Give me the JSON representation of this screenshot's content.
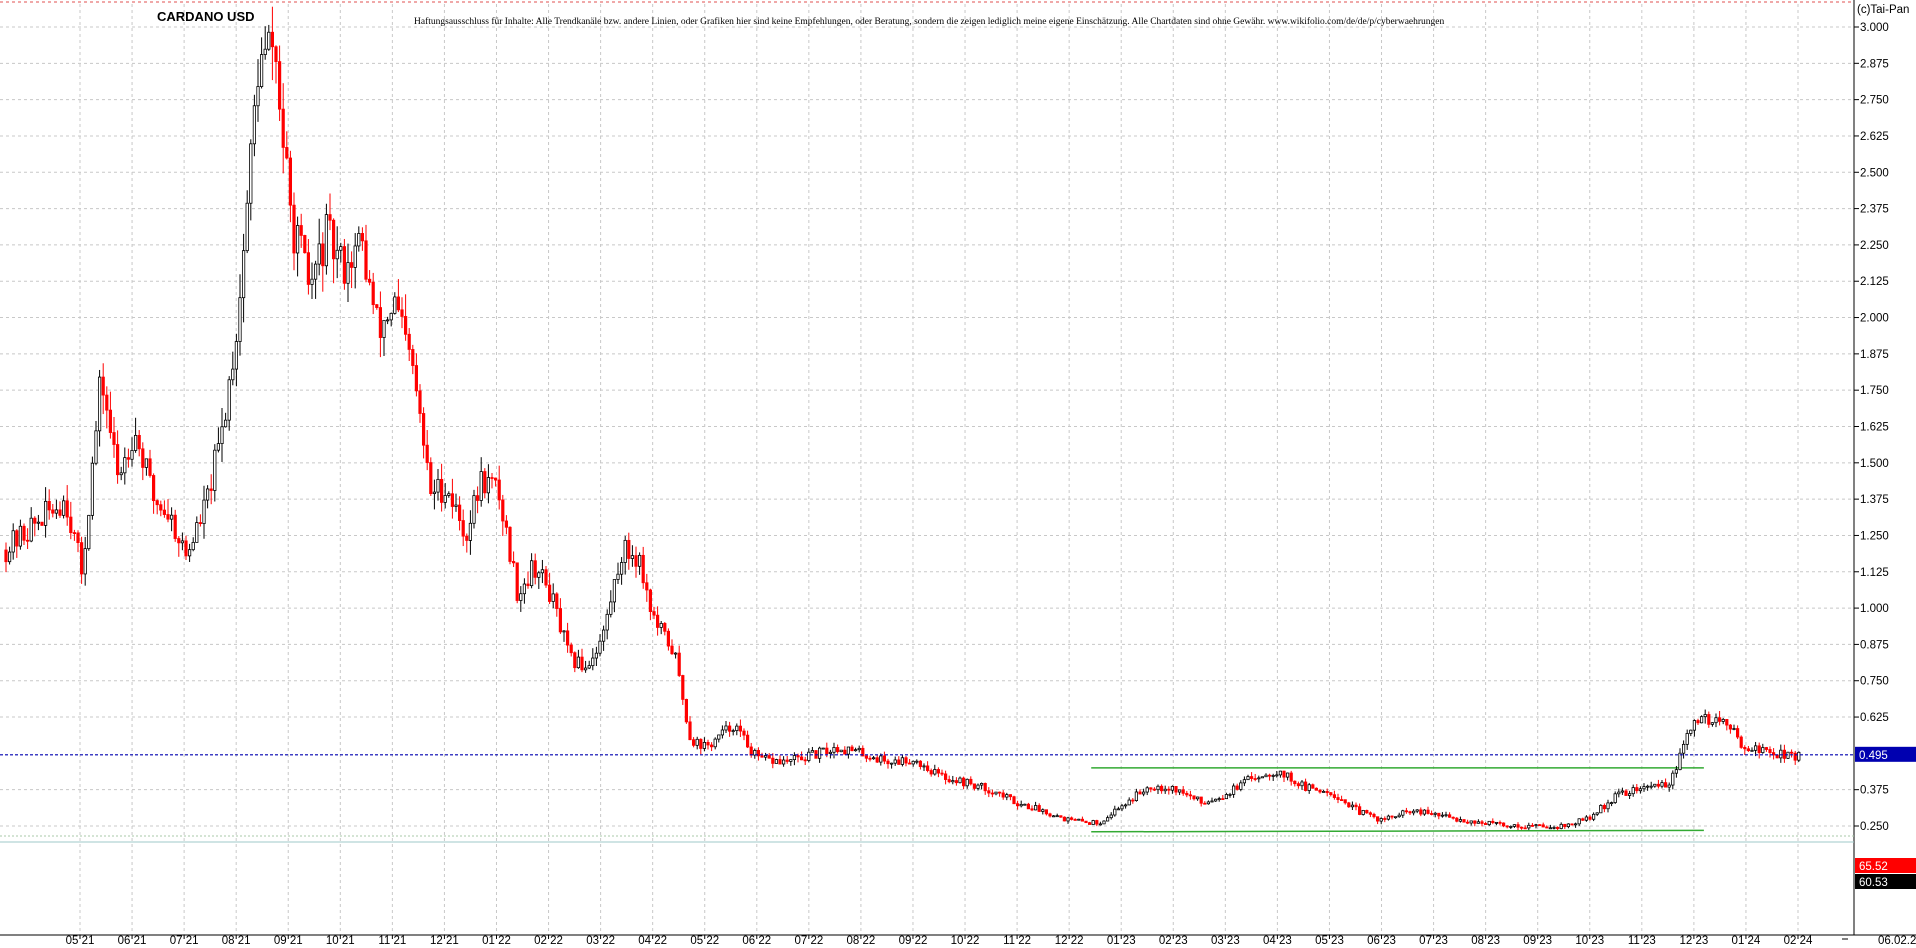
{
  "chart_data": {
    "type": "candlestick",
    "title": "CARDANO USD",
    "disclaimer": "Haftungsausschluss für Inhalte: Alle Trendkanäle bzw. andere Linien, oder Grafiken hier sind keine Empfehlungen, oder Beratung, sondern die zeigen lediglich meine eigene Einschätzung. Alle Chartdaten sind ohne Gewähr.  www.wikifolio.com/de/de/p/cyberwaehrungen",
    "copyright": "(c)Tai-Pan",
    "ylim": [
      0.17,
      3.06
    ],
    "grid": true,
    "y_ticks": [
      "3.000",
      "2.875",
      "2.750",
      "2.625",
      "2.500",
      "2.375",
      "2.250",
      "2.125",
      "2.000",
      "1.875",
      "1.750",
      "1.625",
      "1.500",
      "1.375",
      "1.250",
      "1.125",
      "1.000",
      "0.875",
      "0.750",
      "0.625",
      "0.375",
      "0.250"
    ],
    "x_ticks": [
      "05 21",
      "06 21",
      "07 21",
      "08 21",
      "09 21",
      "10 21",
      "11 21",
      "12 21",
      "01 22",
      "02 22",
      "03 22",
      "04 22",
      "05 22",
      "06 22",
      "07 22",
      "08 22",
      "09 22",
      "10 22",
      "11 22",
      "12 22",
      "01 23",
      "02 23",
      "03 23",
      "04 23",
      "05 23",
      "06 23",
      "07 23",
      "08 23",
      "09 23",
      "10 23",
      "11 23",
      "12 23",
      "01 24",
      "02 24"
    ],
    "last_date_label": "06.02.24",
    "current_price": {
      "label": "0.495",
      "value": 0.495,
      "color": "#0000b0"
    },
    "indicator_badges": [
      {
        "label": "65.52",
        "background": "#ff0000",
        "color": "#ffffff"
      },
      {
        "label": "60.53",
        "background": "#000000",
        "color": "#ffffff"
      }
    ],
    "up_color": "#000000",
    "down_color": "#ff0000",
    "trend_lines": [
      {
        "color": "#33aa33",
        "points": [
          [
            "01 23",
            0.45
          ],
          [
            "12 23",
            0.45
          ]
        ]
      },
      {
        "color": "#33aa33",
        "points": [
          [
            "01 23",
            0.23
          ],
          [
            "12 23",
            0.235
          ]
        ]
      }
    ],
    "price_path": [
      [
        "05 21",
        1.2
      ],
      [
        "05 21",
        1.38
      ],
      [
        "05 21",
        1.12
      ],
      [
        "06 21",
        1.8
      ],
      [
        "06 21",
        1.45
      ],
      [
        "06 21",
        1.62
      ],
      [
        "07 21",
        1.38
      ],
      [
        "07 21",
        1.32
      ],
      [
        "07 21",
        1.18
      ],
      [
        "08 21",
        1.35
      ],
      [
        "08 21",
        1.6
      ],
      [
        "08 21",
        2.0
      ],
      [
        "09 21",
        2.85
      ],
      [
        "09 21",
        2.95
      ],
      [
        "09 21",
        2.35
      ],
      [
        "10 21",
        2.1
      ],
      [
        "10 21",
        2.28
      ],
      [
        "10 21",
        2.18
      ],
      [
        "11 21",
        2.25
      ],
      [
        "11 21",
        1.95
      ],
      [
        "11 21",
        2.05
      ],
      [
        "12 21",
        1.8
      ],
      [
        "12 21",
        1.4
      ],
      [
        "12 21",
        1.42
      ],
      [
        "01 22",
        1.25
      ],
      [
        "01 22",
        1.45
      ],
      [
        "01 22",
        1.4
      ],
      [
        "02 22",
        1.05
      ],
      [
        "02 22",
        1.15
      ],
      [
        "02 22",
        1.05
      ],
      [
        "03 22",
        0.82
      ],
      [
        "03 22",
        0.8
      ],
      [
        "03 22",
        0.9
      ],
      [
        "04 22",
        1.2
      ],
      [
        "04 22",
        1.18
      ],
      [
        "04 22",
        0.95
      ],
      [
        "05 22",
        0.85
      ],
      [
        "05 22",
        0.55
      ],
      [
        "05 22",
        0.52
      ],
      [
        "06 22",
        0.6
      ],
      [
        "06 22",
        0.48
      ],
      [
        "07 22",
        0.47
      ],
      [
        "07 22",
        0.49
      ],
      [
        "08 22",
        0.52
      ],
      [
        "08 22",
        0.5
      ],
      [
        "09 22",
        0.47
      ],
      [
        "09 22",
        0.48
      ],
      [
        "10 22",
        0.42
      ],
      [
        "10 22",
        0.4
      ],
      [
        "11 22",
        0.37
      ],
      [
        "11 22",
        0.33
      ],
      [
        "12 22",
        0.3
      ],
      [
        "12 22",
        0.27
      ],
      [
        "01 23",
        0.26
      ],
      [
        "01 23",
        0.32
      ],
      [
        "02 23",
        0.39
      ],
      [
        "02 23",
        0.38
      ],
      [
        "03 23",
        0.33
      ],
      [
        "03 23",
        0.36
      ],
      [
        "04 23",
        0.42
      ],
      [
        "04 23",
        0.44
      ],
      [
        "05 23",
        0.38
      ],
      [
        "05 23",
        0.37
      ],
      [
        "06 23",
        0.3
      ],
      [
        "06 23",
        0.27
      ],
      [
        "07 23",
        0.3
      ],
      [
        "07 23",
        0.29
      ],
      [
        "08 23",
        0.27
      ],
      [
        "08 23",
        0.26
      ],
      [
        "09 23",
        0.25
      ],
      [
        "09 23",
        0.25
      ],
      [
        "10 23",
        0.25
      ],
      [
        "10 23",
        0.28
      ],
      [
        "11 23",
        0.36
      ],
      [
        "11 23",
        0.38
      ],
      [
        "12 23",
        0.4
      ],
      [
        "12 23",
        0.62
      ],
      [
        "01 24",
        0.61
      ],
      [
        "01 24",
        0.52
      ],
      [
        "02 24",
        0.49
      ]
    ]
  }
}
